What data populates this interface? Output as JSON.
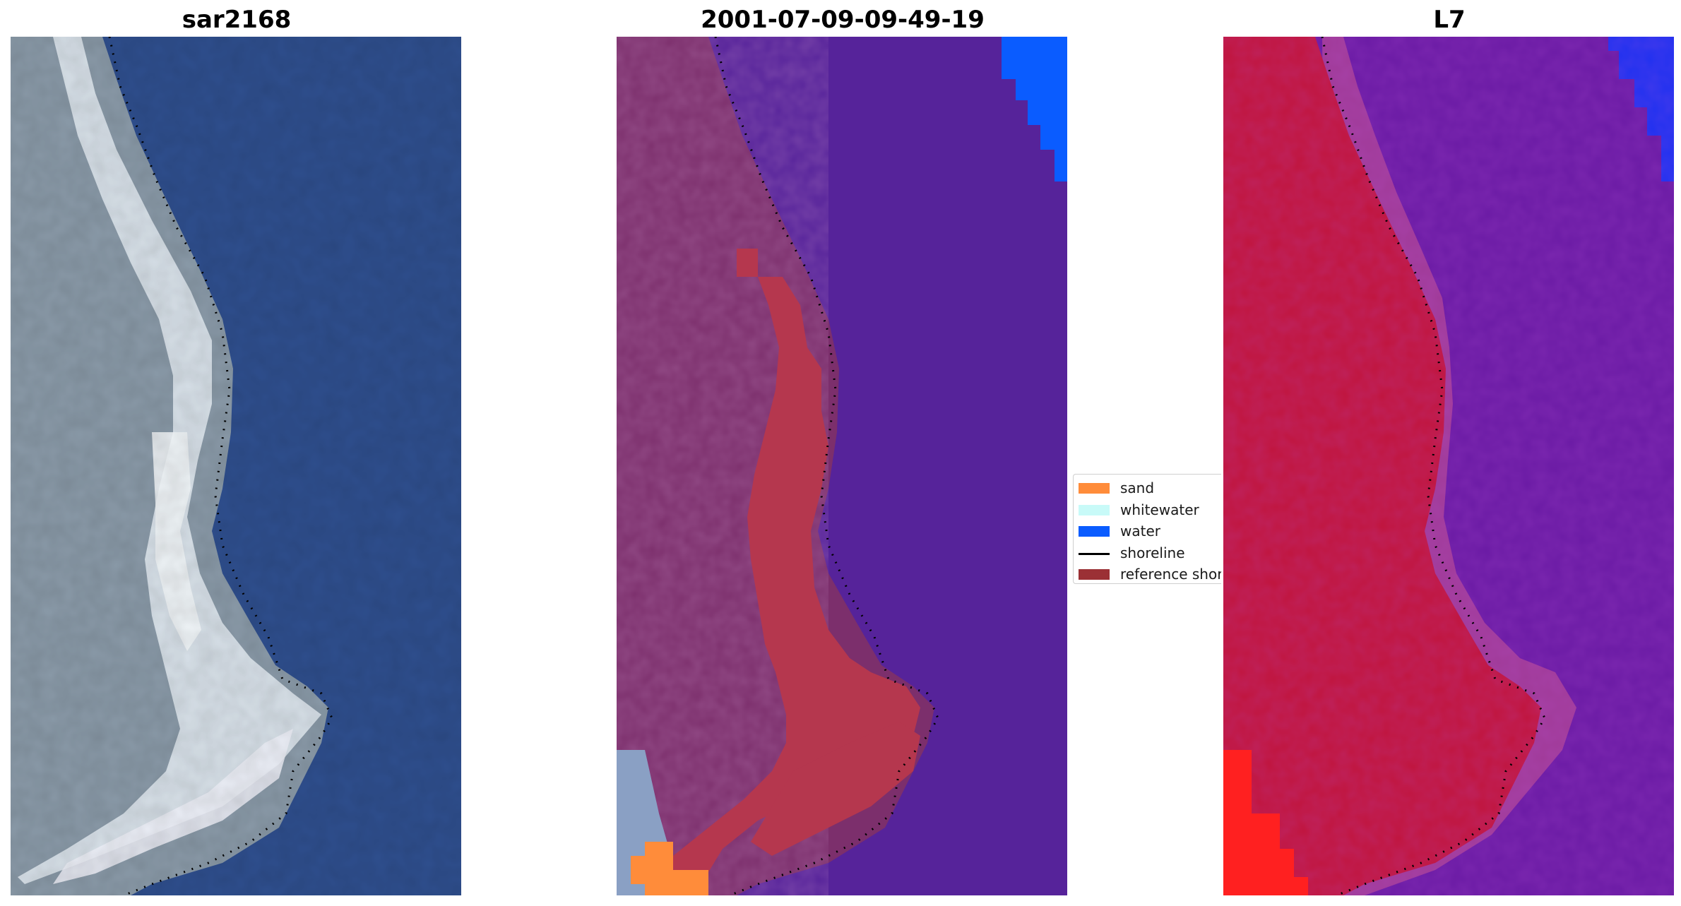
{
  "titles": {
    "left": "sar2168",
    "middle": "2001-07-09-09-49-19",
    "right": "L7"
  },
  "legend": {
    "items": [
      {
        "label": "sand",
        "kind": "patch",
        "color": "#ff8c3a"
      },
      {
        "label": "whitewater",
        "kind": "patch",
        "color": "#c8faf8"
      },
      {
        "label": "water",
        "kind": "patch",
        "color": "#0a5cff"
      },
      {
        "label": "shoreline",
        "kind": "line",
        "color": "#000000"
      },
      {
        "label": "reference shoreline",
        "kind": "patch",
        "color": "#9b3035"
      }
    ]
  },
  "colors": {
    "sea_rgb": "#2f4f8e",
    "land_rgb": "#8fa0ae",
    "whitewater_rgb": "#e4ecf2",
    "sea_classified": "#56239a",
    "land_classified": "#7c2f6c",
    "reference_band": "#b5374e",
    "water_class": "#0a5cff",
    "sand_class": "#ff8c3a",
    "sea_index": "#6a1aa4",
    "land_index": "#c0143c",
    "shoreline": "#000000"
  }
}
